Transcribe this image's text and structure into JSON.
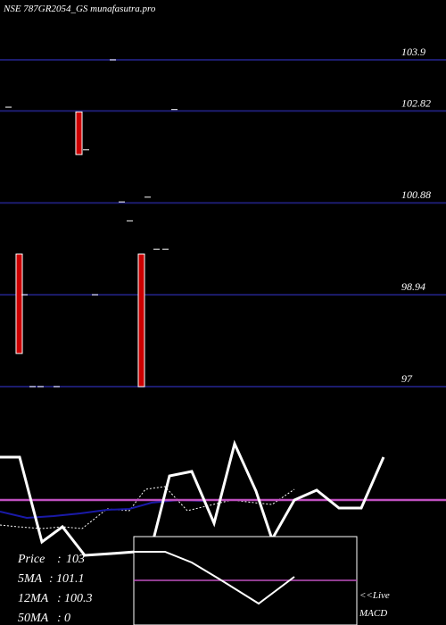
{
  "header": {
    "title": "NSE 787GR2054_GS munafasutra.pro"
  },
  "colors": {
    "background": "#000000",
    "gridline": "#1c1c6e",
    "bearish_candle": "#cc0000",
    "text": "#ffffff",
    "price_line": "#ffffff",
    "ma_line": "#1a1aa8",
    "macd_signal": "#c050c0"
  },
  "stats": {
    "price_label": "Price",
    "price_value": "103",
    "ma5_label": "5MA",
    "ma5_value": "101.1",
    "ma12_label": "12MA",
    "ma12_value": "100.3",
    "ma50_label": "50MA",
    "ma50_value": "0",
    "live_label": "<<Live",
    "macd_label": "MACD"
  },
  "chart_data": {
    "type": "candlestick",
    "title": "NSE 787GR2054_GS munafasutra.pro",
    "ylim": [
      96.5,
      104.5
    ],
    "yticks": [
      103.9,
      102.82,
      100.88,
      98.94,
      97
    ],
    "grid": true,
    "candles": [
      {
        "x": 1,
        "open": 102.9,
        "close": 102.9,
        "high": 102.9,
        "low": 102.9
      },
      {
        "x": 2,
        "open": 99.8,
        "close": 97.7,
        "high": 99.8,
        "low": 97.7
      },
      {
        "x": 3,
        "open": 98.94,
        "close": 98.94,
        "high": 98.94,
        "low": 98.94
      },
      {
        "x": 4,
        "open": 97,
        "close": 97,
        "high": 97,
        "low": 97
      },
      {
        "x": 5,
        "open": 97,
        "close": 97,
        "high": 97,
        "low": 97
      },
      {
        "x": 6,
        "open": 97,
        "close": 97,
        "high": 97,
        "low": 97
      },
      {
        "x": 7,
        "open": 102.8,
        "close": 101.9,
        "high": 102.8,
        "low": 101.9
      },
      {
        "x": 8,
        "open": 102.0,
        "close": 102.0,
        "high": 102.0,
        "low": 102.0
      },
      {
        "x": 9,
        "open": 98.94,
        "close": 98.94,
        "high": 98.94,
        "low": 98.94
      },
      {
        "x": 10,
        "open": 103.9,
        "close": 103.9,
        "high": 103.9,
        "low": 103.9
      },
      {
        "x": 11,
        "open": 100.9,
        "close": 100.9,
        "high": 100.9,
        "low": 100.9
      },
      {
        "x": 12,
        "open": 100.5,
        "close": 100.5,
        "high": 100.5,
        "low": 100.5
      },
      {
        "x": 13,
        "open": 99.8,
        "close": 97.0,
        "high": 99.8,
        "low": 97.0
      },
      {
        "x": 14,
        "open": 101.0,
        "close": 101.0,
        "high": 101.0,
        "low": 101.0
      },
      {
        "x": 15,
        "open": 99.9,
        "close": 99.9,
        "high": 99.9,
        "low": 99.9
      },
      {
        "x": 16,
        "open": 99.9,
        "close": 99.9,
        "high": 99.9,
        "low": 99.9
      },
      {
        "x": 17,
        "open": 102.85,
        "close": 102.85,
        "high": 102.85,
        "low": 102.85
      }
    ]
  }
}
